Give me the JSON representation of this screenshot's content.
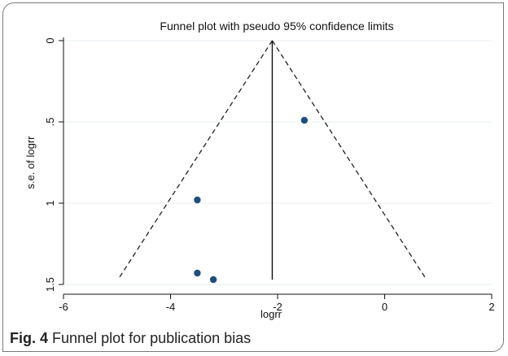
{
  "chart_data": {
    "type": "scatter",
    "title": "Funnel plot with pseudo 95% confidence limits",
    "xlabel": "logrr",
    "ylabel": "s.e. of logrr",
    "xlim": [
      -6,
      2
    ],
    "ylim": [
      1.5,
      0
    ],
    "y_reversed": true,
    "x_ticks": [
      "-6",
      "-4",
      "-2",
      "0",
      "2"
    ],
    "y_ticks": [
      "0",
      ".5",
      "1",
      "1.5"
    ],
    "grid": "horizontal",
    "points": [
      {
        "x": -1.5,
        "y": 0.49
      },
      {
        "x": -3.5,
        "y": 0.98
      },
      {
        "x": -3.5,
        "y": 1.43
      },
      {
        "x": -3.2,
        "y": 1.47
      }
    ],
    "pooled_estimate": -2.1,
    "funnel_se_max": 1.47,
    "point_color": "#1f4e79"
  },
  "caption": {
    "fig_label": "Fig. 4",
    "text": "Funnel plot for publication bias"
  }
}
